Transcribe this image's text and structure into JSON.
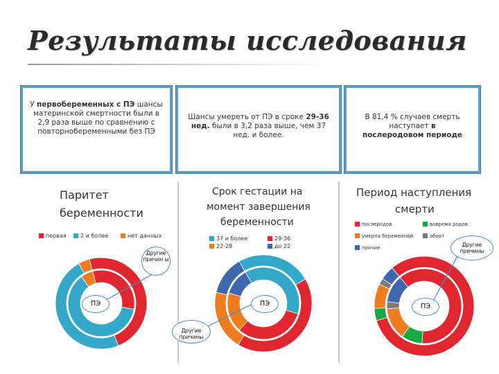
{
  "slide": {
    "title": "Результаты исследования"
  },
  "boxes": [
    {
      "pre": "У ",
      "bold": "первобеременных с ПЭ",
      "post": " шансы материнской смертности были в 2,9 раза выше по сравнению с повторнобеременными без ПЭ"
    },
    {
      "pre": "Шансы умереть от ПЭ в сроке ",
      "bold": "29-36 нед.",
      "post": " были в 3,2 раза выше, чем 37 нед. и более."
    },
    {
      "pre": "В 81,4 % случаев смерть наступает ",
      "bold": "в послеродовом периоде",
      "post": ""
    }
  ],
  "panels": [
    {
      "title_lines": [
        "Паритет",
        "беременности"
      ],
      "legend": [
        "первая",
        "2 и более",
        "нет данных"
      ],
      "callout": "Другие причин ы",
      "center_label": "ПЭ"
    },
    {
      "title_lines": [
        "Срок гестации на",
        "момент завершения",
        "беременности"
      ],
      "legend": [
        "37 и более",
        "29-36",
        "22-28",
        "до 22"
      ],
      "callout": "Другие причины",
      "center_label": "ПЭ"
    },
    {
      "title_lines": [
        "Период наступления",
        "смерти"
      ],
      "legend": [
        "послеродов",
        "вовремя родов",
        "умерла беременной",
        "аборт",
        "прочие"
      ],
      "callout": "Другие причины",
      "center_label": "ПЭ"
    }
  ],
  "colors": {
    "red": "#e0262e",
    "blue": "#33a8c8",
    "orange": "#ef7d1f",
    "navy": "#3f67ad",
    "green": "#1aa846",
    "gray": "#7a7a7a"
  },
  "chart_data": [
    {
      "type": "pie",
      "title": "Паритет беременности",
      "categories": [
        "первая",
        "2 и более",
        "нет данных"
      ],
      "series": [
        {
          "name": "",
          "values": [
            48,
            48,
            4
          ]
        },
        {
          "name": "",
          "values": [
            32,
            62,
            6
          ]
        }
      ]
    },
    {
      "type": "pie",
      "title": "Срок гестации на момент завершения беременности",
      "categories": [
        "37 и более",
        "29-36",
        "22-28",
        "до 22"
      ],
      "series": [
        {
          "name": "",
          "values": [
            25,
            42,
            20,
            13
          ]
        },
        {
          "name": "",
          "values": [
            38,
            32,
            18,
            12
          ]
        }
      ]
    },
    {
      "type": "pie",
      "title": "Период наступления смерти",
      "categories": [
        "послеродов",
        "вовремя родов",
        "умерла беременной",
        "аборт",
        "прочие"
      ],
      "series": [
        {
          "name": "",
          "values": [
            81.4,
            4,
            8,
            2,
            4.6
          ]
        },
        {
          "name": "",
          "values": [
            62,
            9,
            14,
            3,
            12
          ]
        }
      ]
    }
  ]
}
